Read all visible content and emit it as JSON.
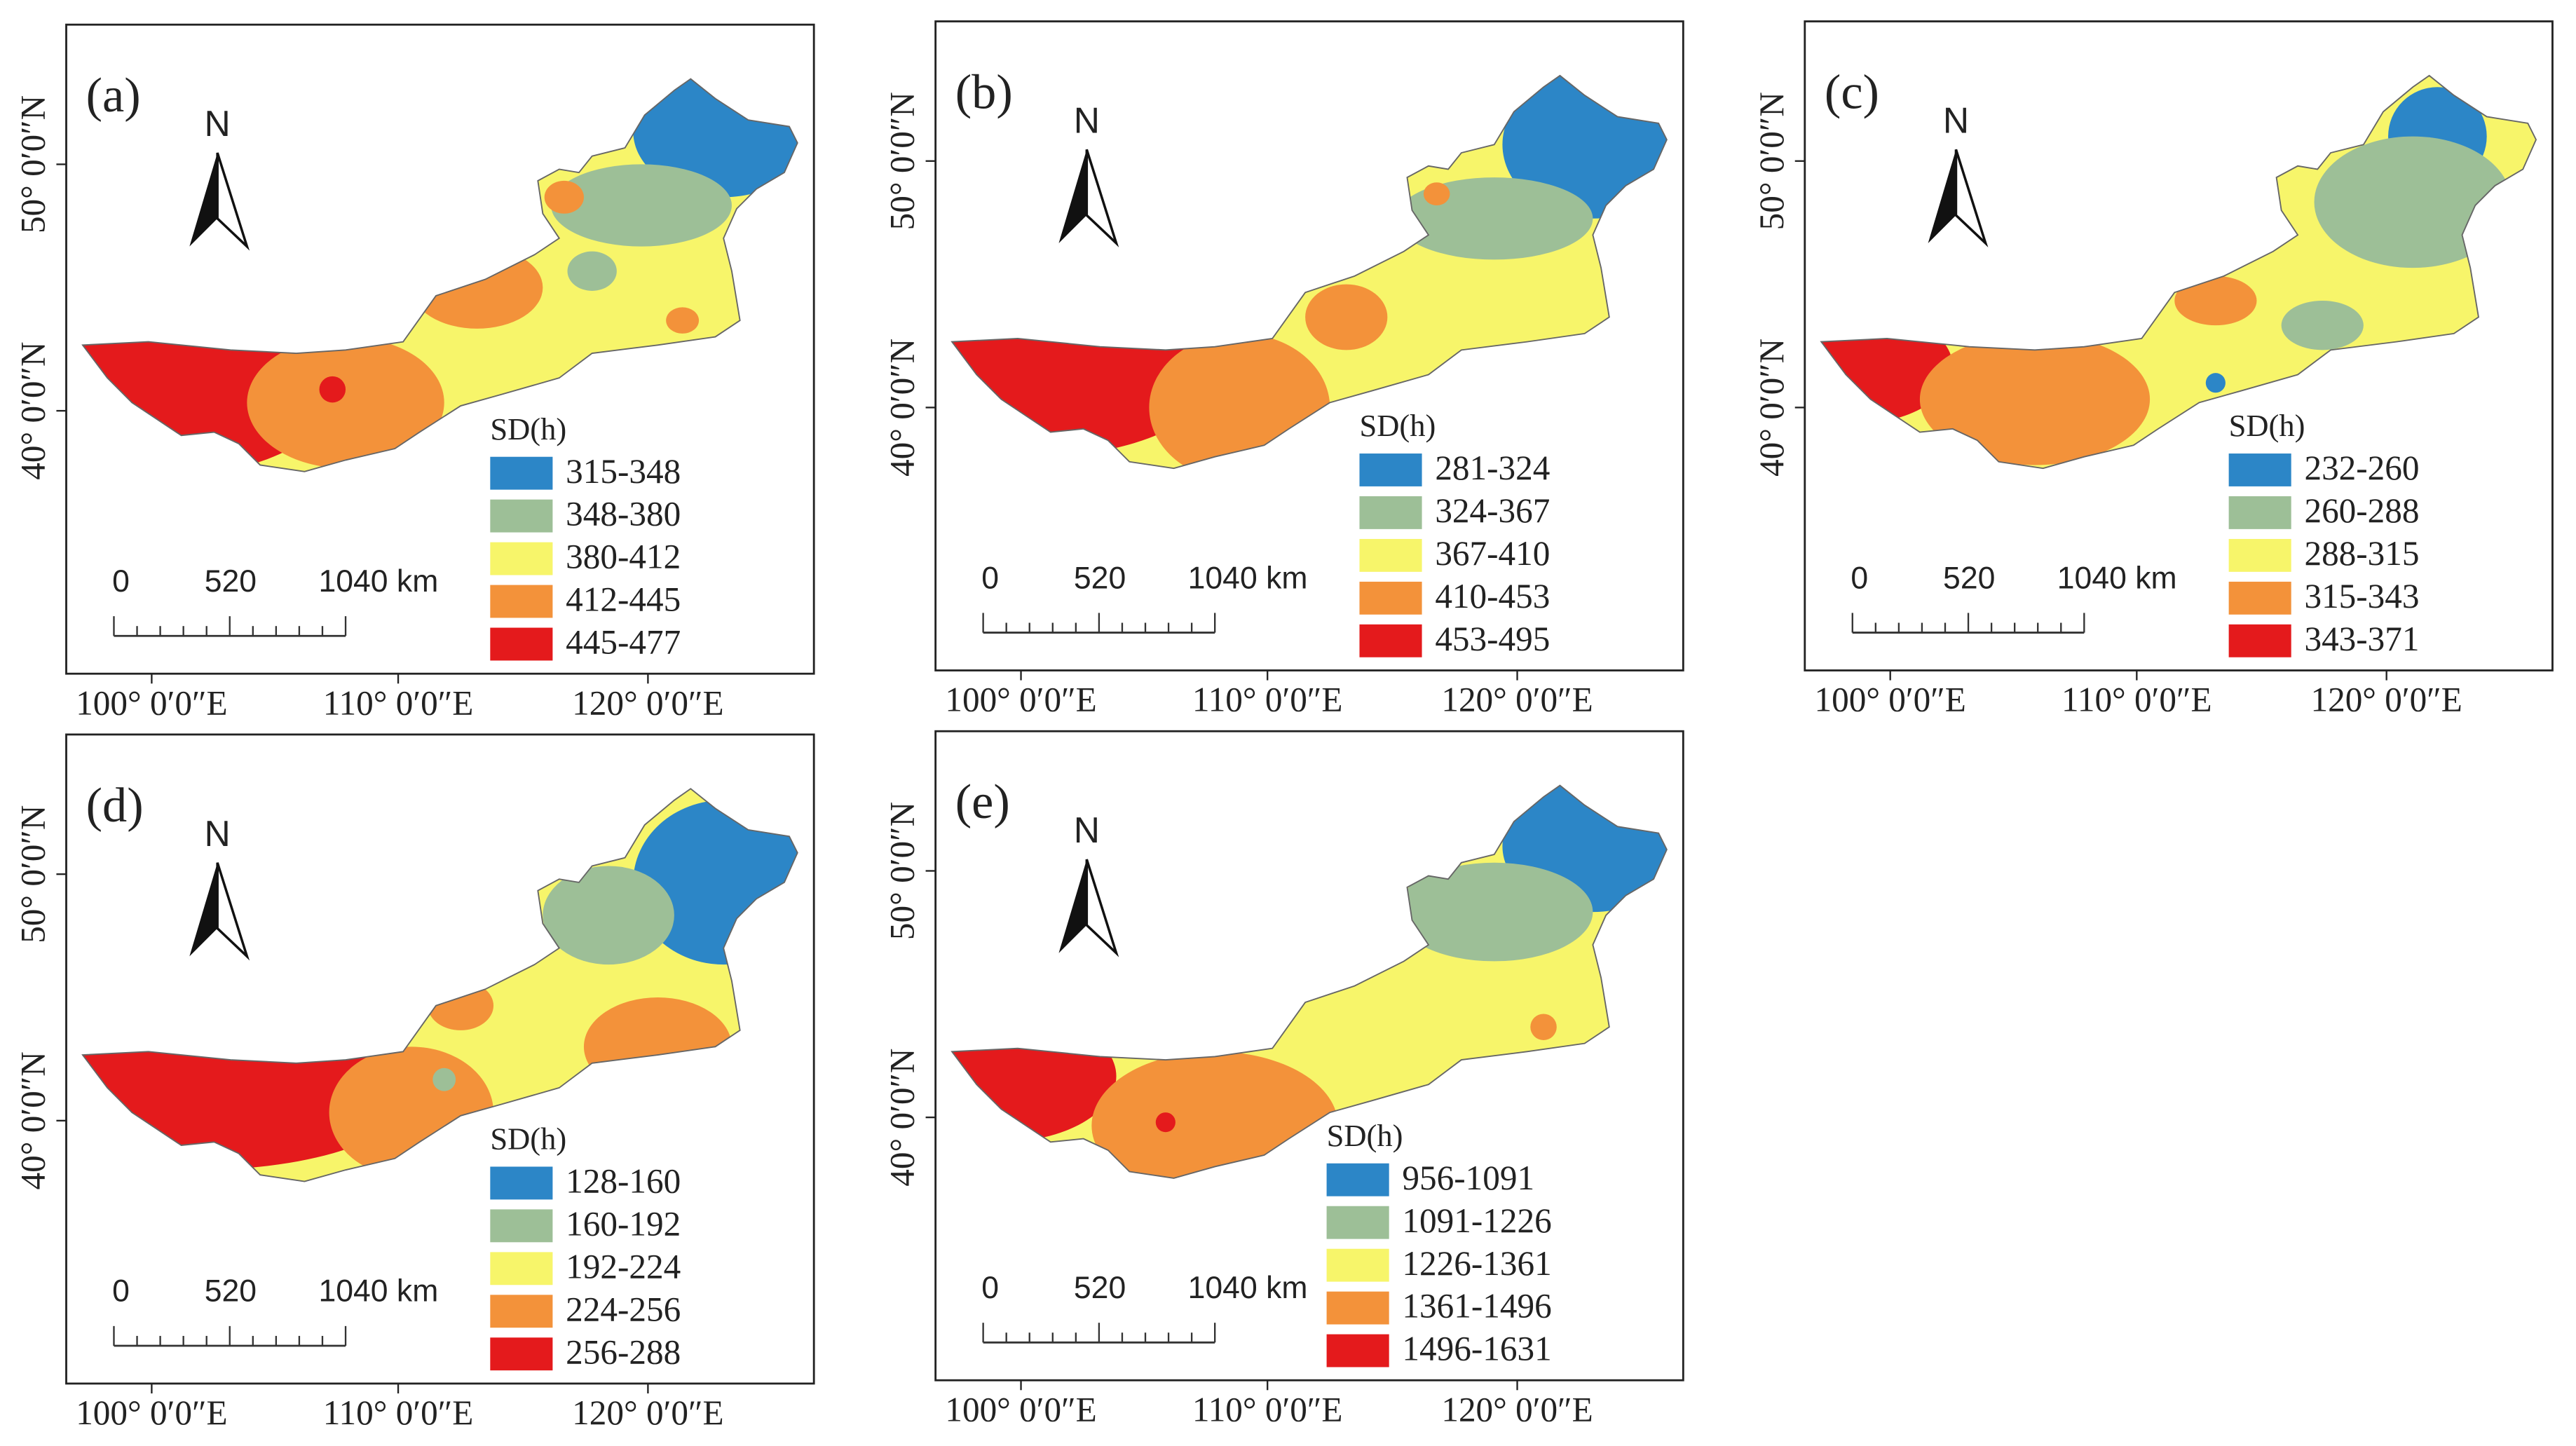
{
  "north": "N",
  "scale_labels": [
    "0",
    "520",
    "1040 km"
  ],
  "x_labels": [
    "100° 0′0″E",
    "110° 0′0″E",
    "120° 0′0″E"
  ],
  "y_labels": [
    "50° 0′0″N",
    "40° 0′0″N"
  ],
  "panels": [
    {
      "label": "(a)",
      "legend_title": "SD(h)",
      "legend": [
        {
          "range": "315-348",
          "color": "#2c86c7"
        },
        {
          "range": "348-380",
          "color": "#9dbf97"
        },
        {
          "range": "380-412",
          "color": "#f7f56a"
        },
        {
          "range": "412-445",
          "color": "#f3923a"
        },
        {
          "range": "445-477",
          "color": "#e41a1c"
        }
      ]
    },
    {
      "label": "(b)",
      "legend_title": "SD(h)",
      "legend": [
        {
          "range": "281-324",
          "color": "#2c86c7"
        },
        {
          "range": "324-367",
          "color": "#9dbf97"
        },
        {
          "range": "367-410",
          "color": "#f7f56a"
        },
        {
          "range": "410-453",
          "color": "#f3923a"
        },
        {
          "range": "453-495",
          "color": "#e41a1c"
        }
      ]
    },
    {
      "label": "(c)",
      "legend_title": "SD(h)",
      "legend": [
        {
          "range": "232-260",
          "color": "#2c86c7"
        },
        {
          "range": "260-288",
          "color": "#9dbf97"
        },
        {
          "range": "288-315",
          "color": "#f7f56a"
        },
        {
          "range": "315-343",
          "color": "#f3923a"
        },
        {
          "range": "343-371",
          "color": "#e41a1c"
        }
      ]
    },
    {
      "label": "(d)",
      "legend_title": "SD(h)",
      "legend": [
        {
          "range": "128-160",
          "color": "#2c86c7"
        },
        {
          "range": "160-192",
          "color": "#9dbf97"
        },
        {
          "range": "192-224",
          "color": "#f7f56a"
        },
        {
          "range": "224-256",
          "color": "#f3923a"
        },
        {
          "range": "256-288",
          "color": "#e41a1c"
        }
      ]
    },
    {
      "label": "(e)",
      "legend_title": "SD(h)",
      "legend": [
        {
          "range": "956-1091",
          "color": "#2c86c7"
        },
        {
          "range": "1091-1226",
          "color": "#9dbf97"
        },
        {
          "range": "1226-1361",
          "color": "#f7f56a"
        },
        {
          "range": "1361-1496",
          "color": "#f3923a"
        },
        {
          "range": "1496-1631",
          "color": "#e41a1c"
        }
      ]
    }
  ]
}
